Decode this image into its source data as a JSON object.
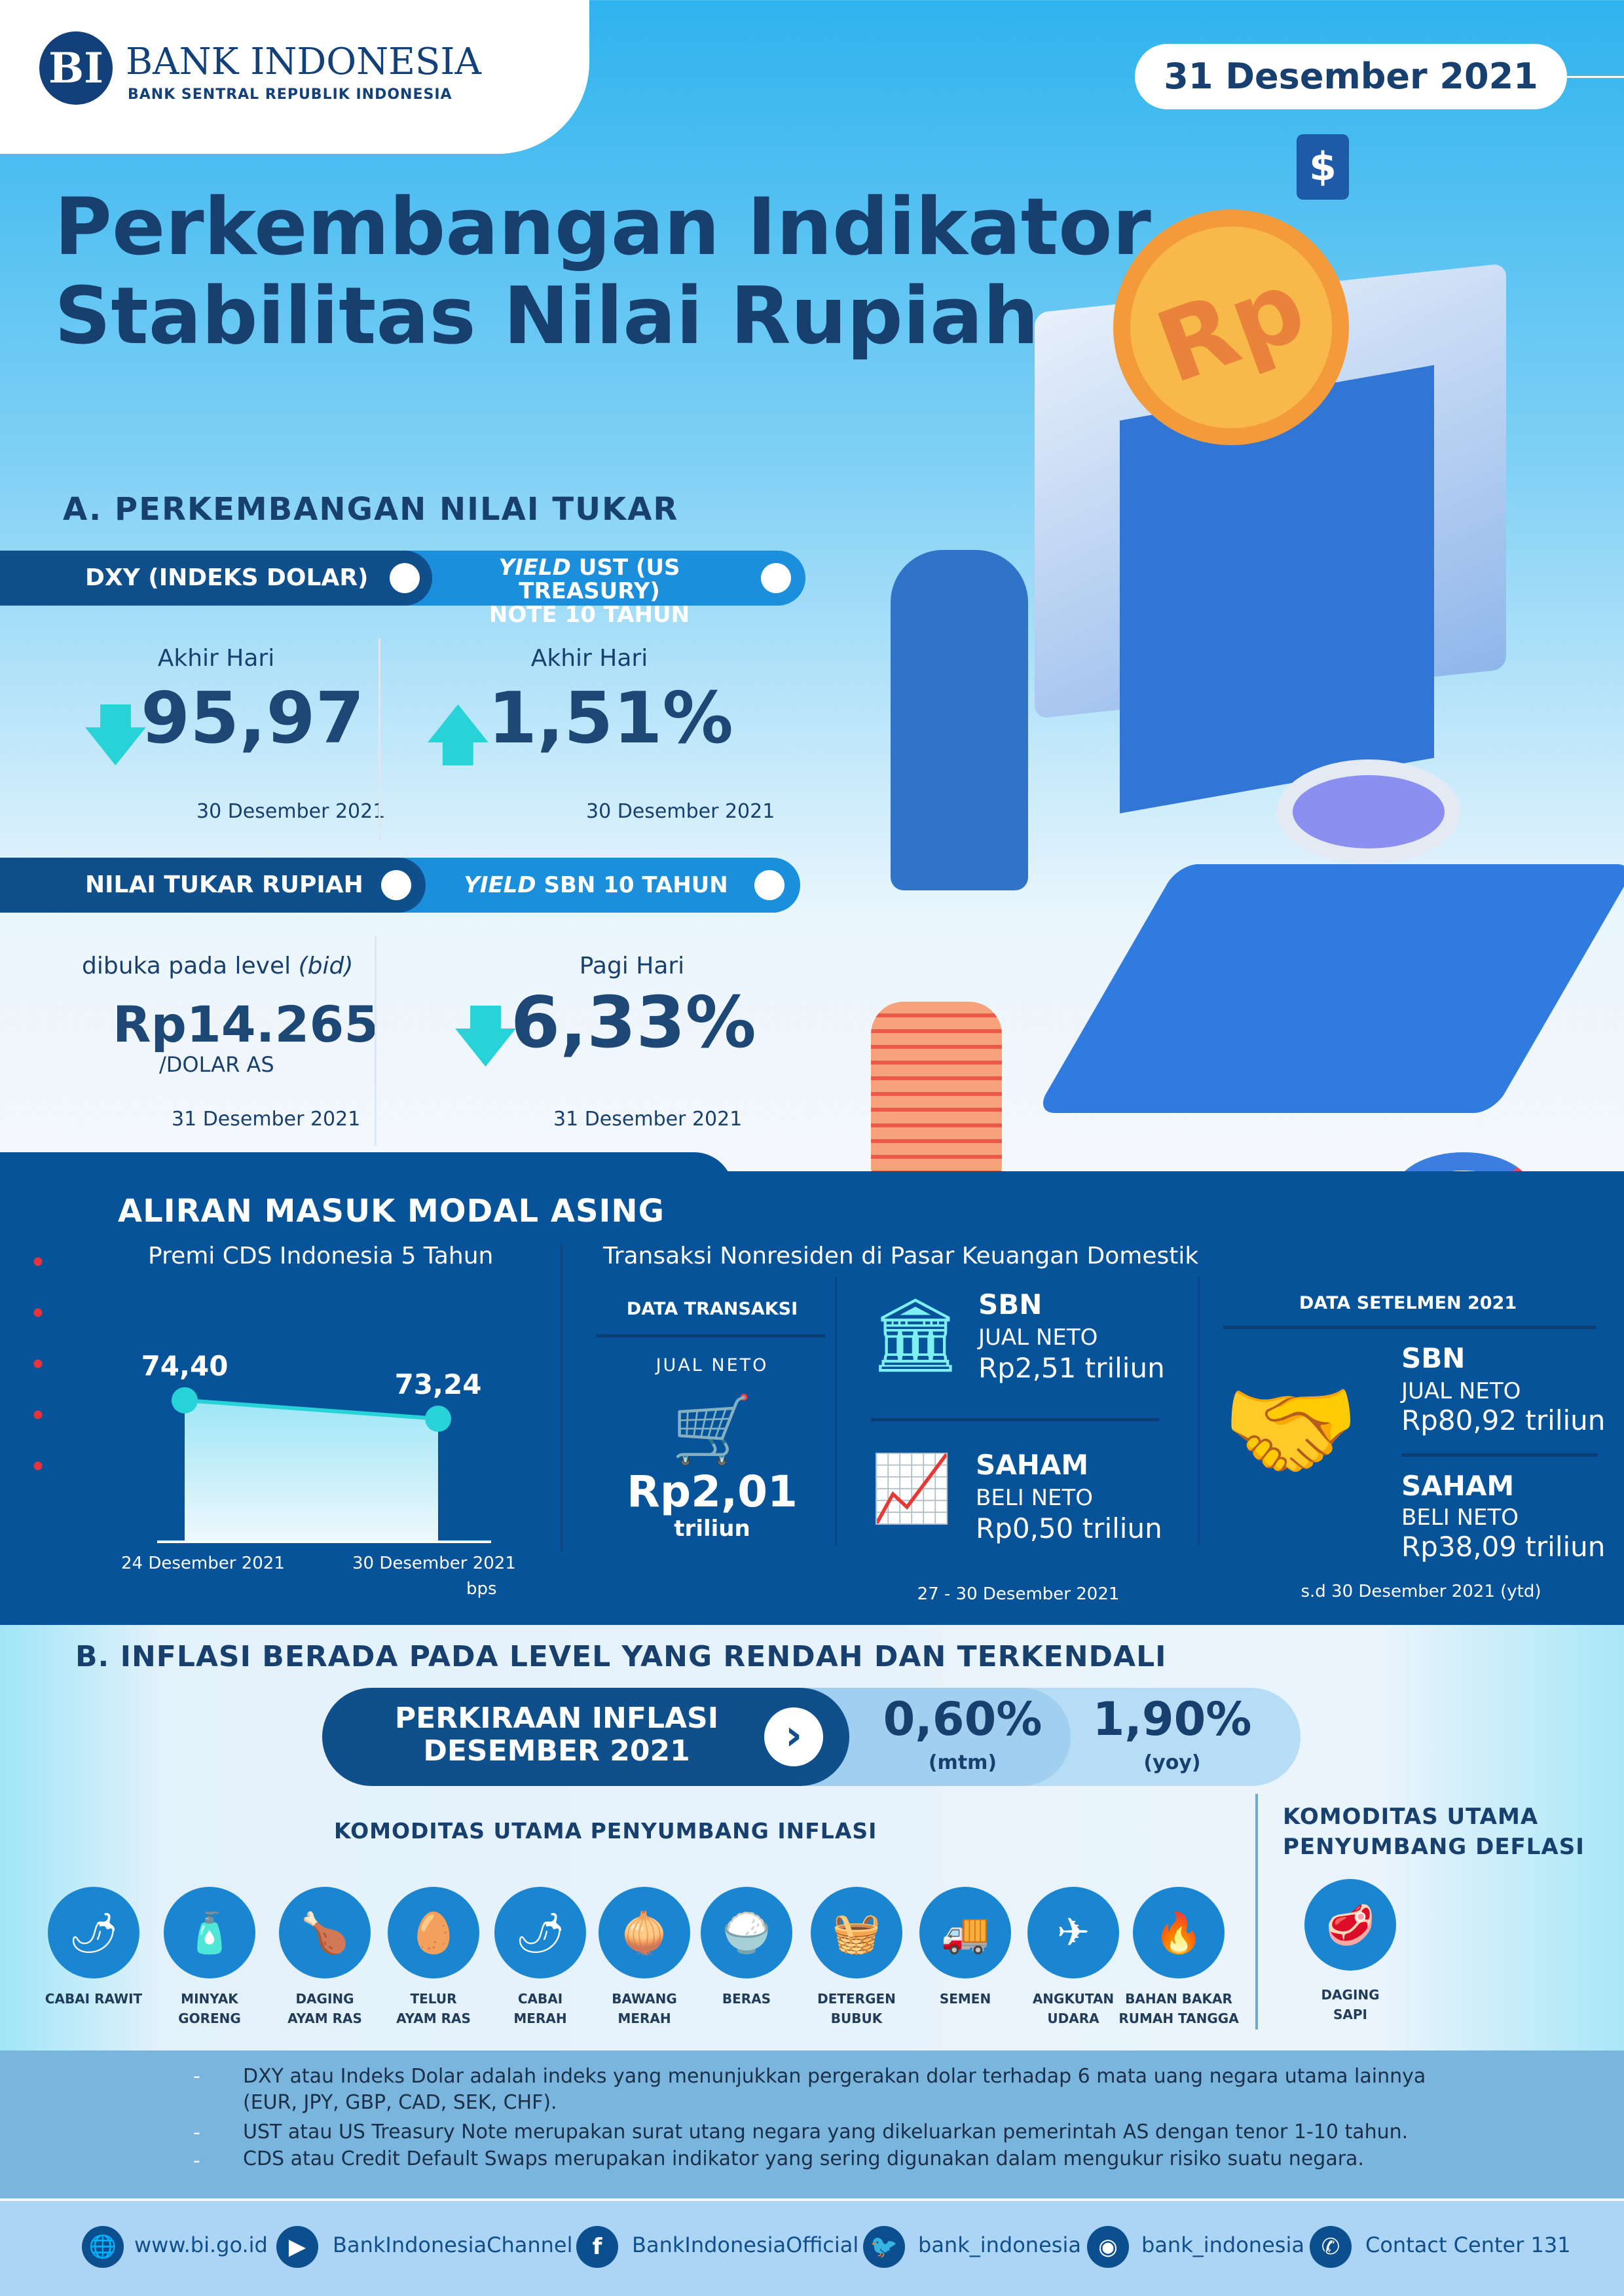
{
  "header": {
    "brand": "BANK INDONESIA",
    "brand_sub": "BANK SENTRAL REPUBLIK INDONESIA",
    "date": "31 Desember 2021",
    "title_line1": "Perkembangan Indikator",
    "title_line2": "Stabilitas Nilai Rupiah"
  },
  "section_a": {
    "heading": "A. PERKEMBANGAN NILAI TUKAR",
    "tab1_left": "DXY (INDEKS DOLAR)",
    "tab1_right_italic": "YIELD",
    "tab1_right_rest": " UST (US TREASURY)",
    "tab1_right_line2": "NOTE  10 TAHUN",
    "dxy": {
      "label": "Akhir Hari",
      "value": "95,97",
      "direction": "down",
      "date": "30 Desember 2021"
    },
    "ust": {
      "label": "Akhir Hari",
      "value": "1,51%",
      "direction": "up",
      "date": "30 Desember 2021"
    },
    "tab2_left": "NILAI TUKAR RUPIAH",
    "tab2_right_italic": "YIELD",
    "tab2_right_rest": " SBN 10 TAHUN",
    "rupiah": {
      "label": "dibuka pada level",
      "label_italic": "(bid)",
      "value": "Rp14.265",
      "unit": "/DOLAR AS",
      "date": "31 Desember 2021"
    },
    "sbn": {
      "label": "Pagi Hari",
      "value": "6,33%",
      "direction": "down",
      "date": "31 Desember 2021"
    }
  },
  "capital": {
    "heading": "ALIRAN MASUK MODAL ASING",
    "cds_title": "Premi CDS Indonesia 5 Tahun",
    "cds_unit": "bps",
    "transaksi_title": "Transaksi Nonresiden di Pasar Keuangan Domestik",
    "data_transaksi": "DATA TRANSAKSI",
    "jual_neto": "JUAL NETO",
    "total_value": "Rp2,01",
    "total_unit": "triliun",
    "sbn": {
      "title": "SBN",
      "label": "JUAL NETO",
      "value": "Rp2,51 triliun"
    },
    "saham": {
      "title": "SAHAM",
      "label": "BELI NETO",
      "value": "Rp0,50 triliun"
    },
    "period": "27 - 30 Desember 2021",
    "setelmen_title": "DATA SETELMEN 2021",
    "set_sbn": {
      "title": "SBN",
      "label": "JUAL NETO",
      "value": "Rp80,92 triliun"
    },
    "set_saham": {
      "title": "SAHAM",
      "label": "BELI NETO",
      "value": "Rp38,09 triliun"
    },
    "set_period": "s.d 30 Desember 2021 (ytd)"
  },
  "chart_data": {
    "type": "area",
    "x": [
      "24 Desember 2021",
      "30 Desember 2021"
    ],
    "values": [
      74.4,
      73.24
    ],
    "data_labels": [
      "74,40",
      "73,24"
    ],
    "ylabel": "bps",
    "grid": false
  },
  "section_b": {
    "heading": "B. INFLASI BERADA PADA LEVEL YANG RENDAH DAN TERKENDALI",
    "forecast_line1": "PERKIRAAN INFLASI",
    "forecast_line2": "DESEMBER 2021",
    "mtm_value": "0,60%",
    "mtm_label": "(mtm)",
    "yoy_value": "1,90%",
    "yoy_label": "(yoy)",
    "inflasi_title": "KOMODITAS UTAMA PENYUMBANG INFLASI",
    "deflasi_title_1": "KOMODITAS UTAMA",
    "deflasi_title_2": "PENYUMBANG DEFLASI",
    "inflasi_items": [
      {
        "l1": "CABAI RAWIT",
        "l2": ""
      },
      {
        "l1": "MINYAK GORENG",
        "l2": ""
      },
      {
        "l1": "DAGING",
        "l2": "AYAM RAS"
      },
      {
        "l1": "TELUR",
        "l2": "AYAM RAS"
      },
      {
        "l1": "CABAI",
        "l2": "MERAH"
      },
      {
        "l1": "BAWANG",
        "l2": "MERAH"
      },
      {
        "l1": "BERAS",
        "l2": ""
      },
      {
        "l1": "DETERGEN",
        "l2": "BUBUK"
      },
      {
        "l1": "SEMEN",
        "l2": ""
      },
      {
        "l1": "ANGKUTAN",
        "l2": "UDARA"
      },
      {
        "l1": "BAHAN BAKAR",
        "l2": "RUMAH TANGGA"
      }
    ],
    "deflasi_items": [
      {
        "l1": "DAGING",
        "l2": "SAPI"
      }
    ]
  },
  "notes": [
    "DXY atau Indeks Dolar adalah indeks yang menunjukkan pergerakan dolar terhadap 6 mata uang negara utama lainnya",
    "(EUR, JPY, GBP, CAD, SEK, CHF).",
    "UST atau US Treasury Note merupakan surat utang negara yang dikeluarkan pemerintah AS dengan tenor 1-10 tahun.",
    "CDS atau Credit Default Swaps merupakan indikator yang sering digunakan dalam mengukur risiko suatu negara."
  ],
  "footer": [
    {
      "icon": "globe-icon",
      "text": "www.bi.go.id"
    },
    {
      "icon": "youtube-icon",
      "text": "BankIndonesiaChannel"
    },
    {
      "icon": "facebook-icon",
      "text": "BankIndonesiaOfficial"
    },
    {
      "icon": "twitter-icon",
      "text": "bank_indonesia"
    },
    {
      "icon": "instagram-icon",
      "text": "bank_indonesia"
    },
    {
      "icon": "phone-icon",
      "text": "Contact Center 131"
    }
  ],
  "colors": {
    "navy": "#17406f",
    "dark_blue": "#06539a",
    "accent_cyan": "#27d3d6",
    "accent_red": "#e8323c"
  }
}
